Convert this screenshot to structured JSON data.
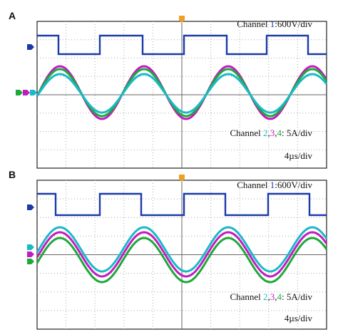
{
  "panels": [
    {
      "label": "A",
      "channel1": {
        "prefix": "Channel ",
        "number": "1",
        "suffix": ":600V/div"
      },
      "channel234": {
        "prefix": "Channel ",
        "n2": "2",
        "c1": ",",
        "n3": "3",
        "c2": ",",
        "n4": "4",
        "suffix": ": 5A/div"
      },
      "timebase": "4µs/div"
    },
    {
      "label": "B",
      "channel1": {
        "prefix": "Channel ",
        "number": "1",
        "suffix": ":600V/div"
      },
      "channel234": {
        "prefix": "Channel ",
        "n2": "2",
        "c1": ",",
        "n3": "3",
        "c2": ",",
        "n4": "4",
        "suffix": ": 5A/div"
      },
      "timebase": "4µs/div"
    }
  ]
}
